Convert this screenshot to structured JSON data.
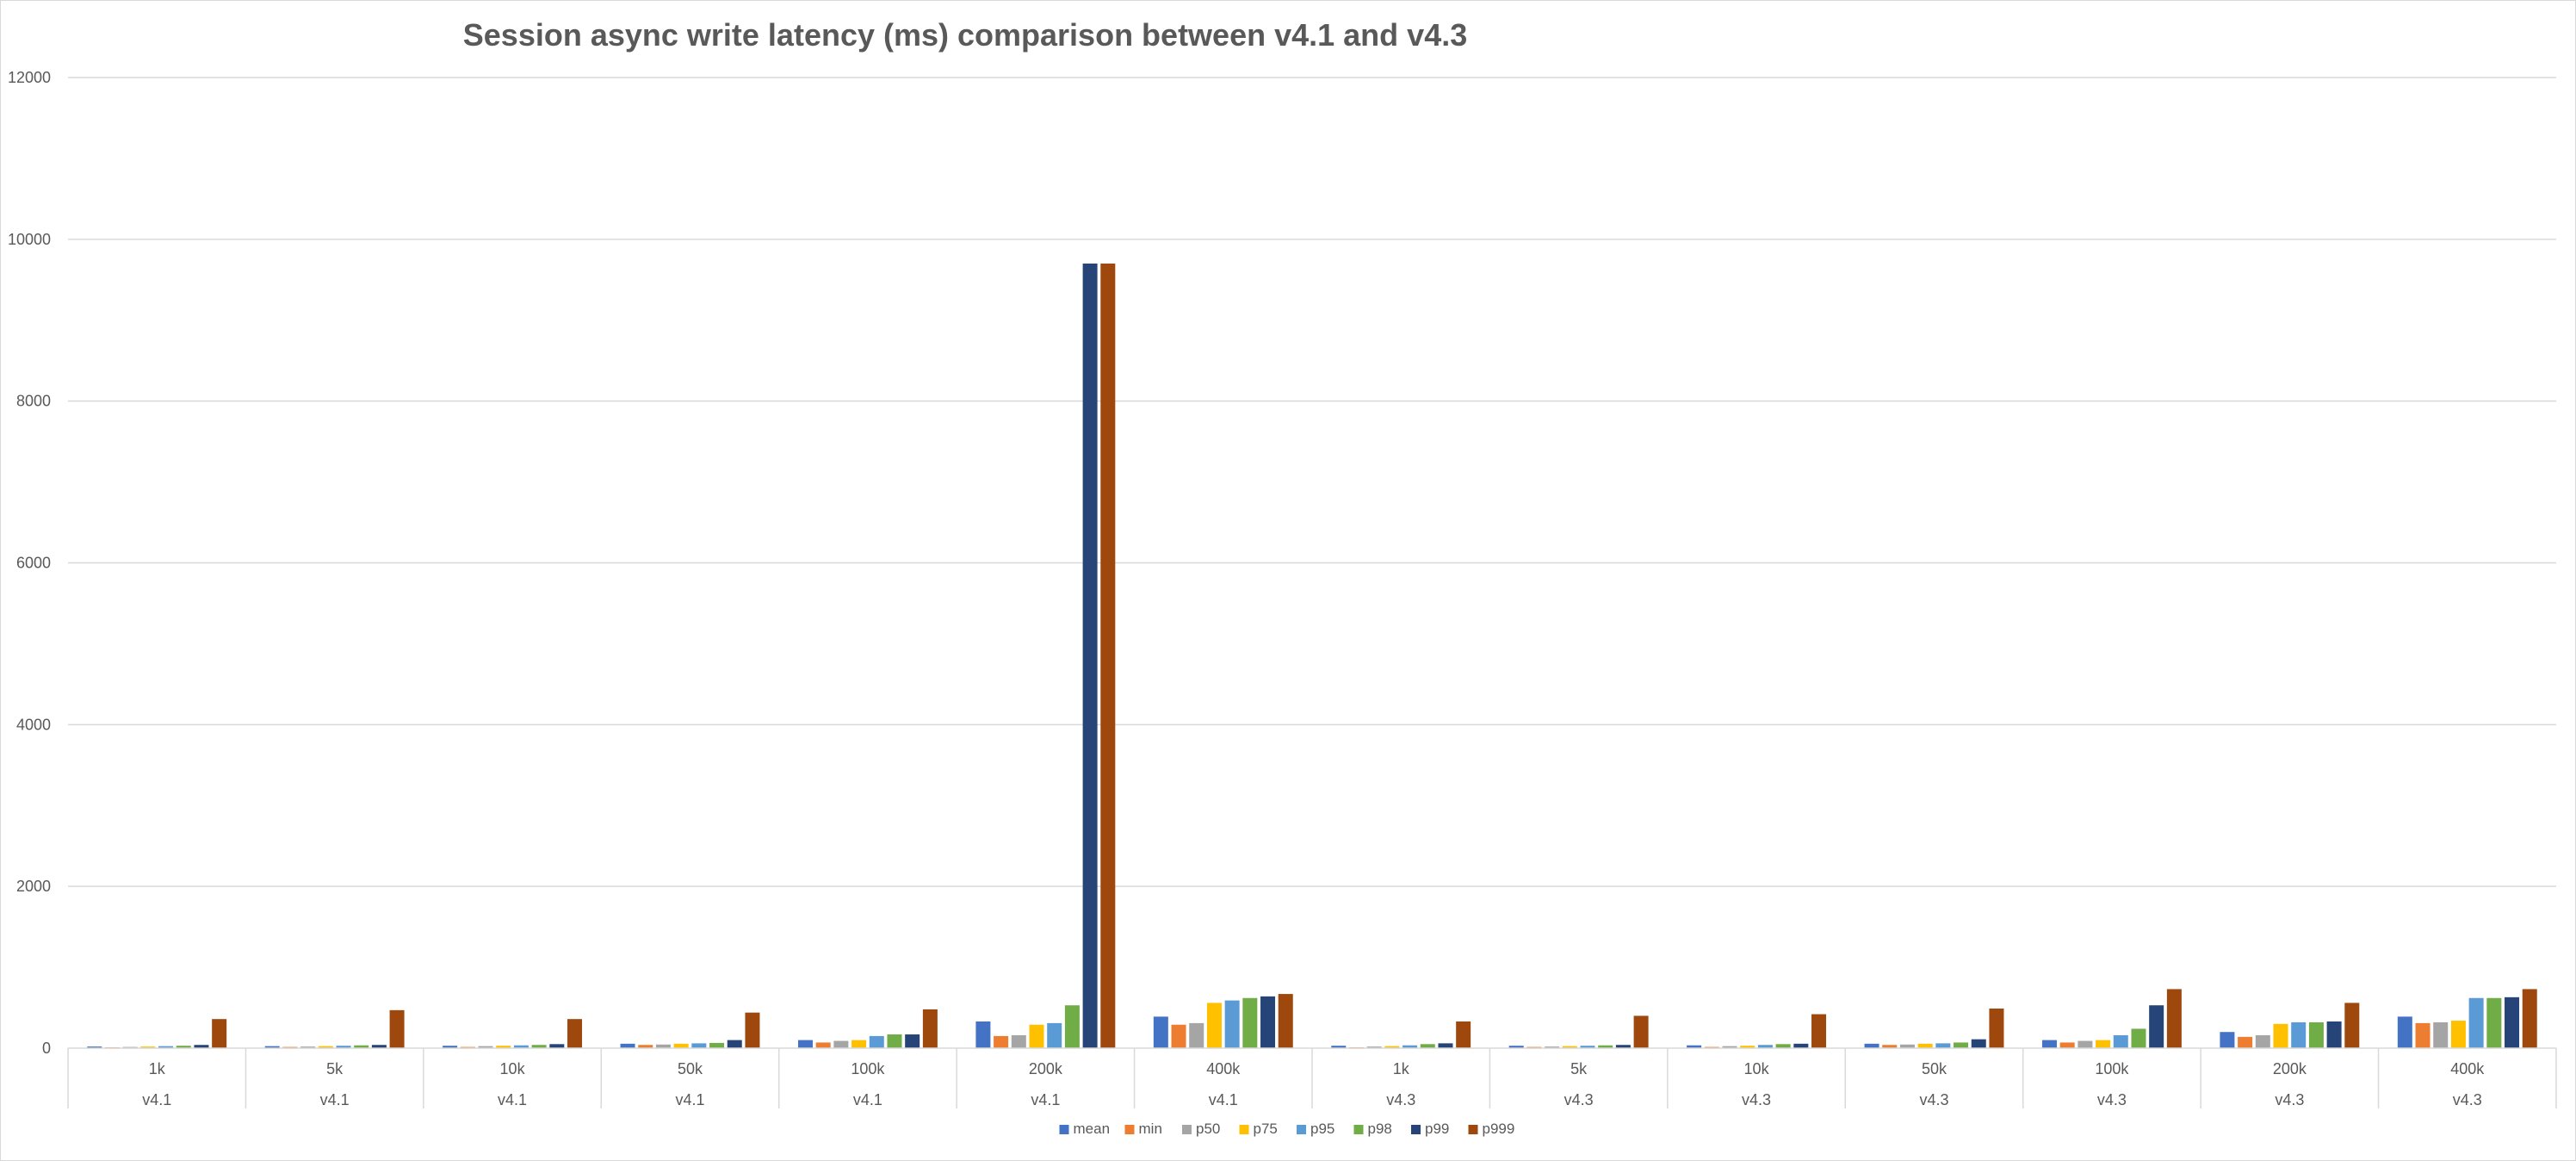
{
  "chart_data": {
    "type": "bar",
    "title": "Session async write latency (ms) comparison between v4.1 and v4.3",
    "xlabel": "",
    "ylabel": "",
    "ylim": [
      0,
      12000
    ],
    "yticks": [
      "0",
      "2000",
      "4000",
      "6000",
      "8000",
      "10000",
      "12000"
    ],
    "grid": true,
    "legend_position": "bottom",
    "categories": [
      "1k",
      "5k",
      "10k",
      "50k",
      "100k",
      "200k",
      "400k",
      "1k",
      "5k",
      "10k",
      "50k",
      "100k",
      "200k",
      "400k"
    ],
    "groups": [
      "v4.1",
      "v4.1",
      "v4.1",
      "v4.1",
      "v4.1",
      "v4.1",
      "v4.1",
      "v4.3",
      "v4.3",
      "v4.3",
      "v4.3",
      "v4.3",
      "v4.3",
      "v4.3"
    ],
    "series": [
      {
        "name": "mean",
        "color": "#4472c4",
        "values": [
          20,
          25,
          30,
          55,
          100,
          330,
          390,
          30,
          30,
          35,
          55,
          100,
          200,
          390
        ]
      },
      {
        "name": "min",
        "color": "#ed7d31",
        "values": [
          10,
          15,
          15,
          40,
          70,
          150,
          290,
          10,
          15,
          15,
          40,
          70,
          140,
          310
        ]
      },
      {
        "name": "p50",
        "color": "#a5a5a5",
        "values": [
          15,
          20,
          25,
          45,
          90,
          160,
          310,
          20,
          20,
          25,
          45,
          90,
          160,
          320
        ]
      },
      {
        "name": "p75",
        "color": "#ffc000",
        "values": [
          20,
          25,
          30,
          55,
          100,
          290,
          560,
          25,
          25,
          30,
          55,
          100,
          300,
          340
        ]
      },
      {
        "name": "p95",
        "color": "#5b9bd5",
        "values": [
          25,
          30,
          35,
          60,
          150,
          310,
          590,
          35,
          30,
          40,
          60,
          160,
          320,
          620
        ]
      },
      {
        "name": "p98",
        "color": "#70ad47",
        "values": [
          30,
          35,
          40,
          65,
          170,
          530,
          620,
          50,
          35,
          50,
          70,
          240,
          320,
          620
        ]
      },
      {
        "name": "p99",
        "color": "#264478",
        "values": [
          40,
          40,
          50,
          100,
          170,
          9700,
          640,
          60,
          40,
          55,
          110,
          530,
          330,
          630
        ]
      },
      {
        "name": "p999",
        "color": "#9e480e",
        "values": [
          360,
          470,
          360,
          440,
          480,
          9700,
          670,
          330,
          400,
          420,
          490,
          730,
          560,
          730
        ]
      }
    ]
  }
}
